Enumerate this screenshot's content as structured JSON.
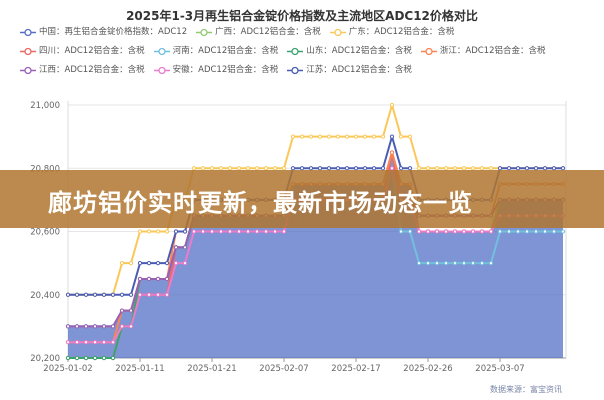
{
  "chart_data": {
    "type": "line",
    "title": "2025年1-3月再生铝合金锭价格指数及主流地区ADC12价格对比",
    "x_tick_labels": [
      "2025-01-02",
      "2025-01-11",
      "2025-01-21",
      "2025-02-07",
      "2025-02-17",
      "2025-02-26",
      "2025-03-07"
    ],
    "y_tick_labels": [
      "20,200",
      "20,400",
      "20,600",
      "20,800",
      "21,000"
    ],
    "ylim": [
      20200,
      21000
    ],
    "grid": true,
    "legend_position": "top",
    "source": "数据来源：富宝资讯",
    "series": [
      {
        "name": "中国：再生铝合金锭价格指数：ADC12",
        "color": "#5470c6",
        "area": true,
        "values": [
          20300,
          20300,
          20300,
          20300,
          20300,
          20300,
          20350,
          20350,
          20450,
          20450,
          20450,
          20450,
          20550,
          20550,
          20650,
          20650,
          20650,
          20650,
          20650,
          20650,
          20650,
          20650,
          20650,
          20650,
          20650,
          20750,
          20750,
          20750,
          20750,
          20750,
          20750,
          20750,
          20750,
          20750,
          20750,
          20750,
          20850,
          20750,
          20750,
          20600,
          20600,
          20600,
          20600,
          20600,
          20600,
          20600,
          20600,
          20600,
          20700,
          20700,
          20700,
          20700,
          20700,
          20700,
          20700,
          20700
        ]
      },
      {
        "name": "广西：ADC12铝合金：含税",
        "color": "#91cc75",
        "values": [
          20200,
          20200,
          20200,
          20200,
          20200,
          20200,
          20300,
          20300,
          20450,
          20450,
          20450,
          20450,
          20550,
          20550,
          20650,
          20650,
          20650,
          20650,
          20650,
          20650,
          20650,
          20650,
          20650,
          20650,
          20650,
          20750,
          20750,
          20750,
          20750,
          20750,
          20750,
          20750,
          20750,
          20750,
          20750,
          20750,
          20800,
          20700,
          20700,
          20600,
          20600,
          20600,
          20600,
          20600,
          20600,
          20600,
          20600,
          20600,
          20700,
          20700,
          20700,
          20700,
          20700,
          20700,
          20700,
          20700
        ]
      },
      {
        "name": "广东：ADC12铝合金：含税",
        "color": "#fac858",
        "values": [
          20400,
          20400,
          20400,
          20400,
          20400,
          20400,
          20500,
          20500,
          20600,
          20600,
          20600,
          20600,
          20700,
          20700,
          20800,
          20800,
          20800,
          20800,
          20800,
          20800,
          20800,
          20800,
          20800,
          20800,
          20800,
          20900,
          20900,
          20900,
          20900,
          20900,
          20900,
          20900,
          20900,
          20900,
          20900,
          20900,
          21000,
          20900,
          20900,
          20800,
          20800,
          20800,
          20800,
          20800,
          20800,
          20800,
          20800,
          20800,
          20800,
          20800,
          20800,
          20800,
          20800,
          20800,
          20800,
          20800
        ]
      },
      {
        "name": "四川：ADC12铝合金：含税",
        "color": "#ee6666",
        "values": [
          20200,
          20200,
          20200,
          20200,
          20200,
          20200,
          20300,
          20300,
          20400,
          20400,
          20400,
          20400,
          20550,
          20550,
          20650,
          20650,
          20650,
          20650,
          20650,
          20650,
          20650,
          20650,
          20650,
          20650,
          20650,
          20700,
          20700,
          20700,
          20700,
          20700,
          20700,
          20700,
          20700,
          20700,
          20700,
          20700,
          20850,
          20700,
          20700,
          20600,
          20600,
          20600,
          20600,
          20600,
          20600,
          20600,
          20600,
          20600,
          20650,
          20650,
          20650,
          20650,
          20650,
          20650,
          20650,
          20650
        ]
      },
      {
        "name": "河南：ADC12铝合金：含税",
        "color": "#73c0de",
        "values": [
          20300,
          20300,
          20300,
          20300,
          20300,
          20300,
          20350,
          20350,
          20450,
          20450,
          20450,
          20450,
          20550,
          20550,
          20650,
          20650,
          20650,
          20650,
          20650,
          20650,
          20650,
          20650,
          20650,
          20650,
          20650,
          20750,
          20750,
          20750,
          20750,
          20750,
          20750,
          20750,
          20750,
          20750,
          20750,
          20750,
          20800,
          20600,
          20600,
          20500,
          20500,
          20500,
          20500,
          20500,
          20500,
          20500,
          20500,
          20500,
          20600,
          20600,
          20600,
          20600,
          20600,
          20600,
          20600,
          20600
        ]
      },
      {
        "name": "山东：ADC12铝合金：含税",
        "color": "#3ba272",
        "values": [
          20200,
          20200,
          20200,
          20200,
          20200,
          20200,
          20300,
          20300,
          20450,
          20450,
          20450,
          20450,
          20550,
          20550,
          20650,
          20650,
          20650,
          20650,
          20650,
          20650,
          20650,
          20650,
          20650,
          20650,
          20650,
          20700,
          20700,
          20700,
          20700,
          20700,
          20700,
          20700,
          20700,
          20700,
          20700,
          20700,
          20800,
          20700,
          20700,
          20650,
          20650,
          20650,
          20650,
          20650,
          20650,
          20650,
          20650,
          20650,
          20700,
          20700,
          20700,
          20700,
          20700,
          20700,
          20700,
          20700
        ]
      },
      {
        "name": "浙江：ADC12铝合金：含税",
        "color": "#fc8452",
        "values": [
          20250,
          20250,
          20250,
          20250,
          20250,
          20250,
          20350,
          20350,
          20450,
          20450,
          20450,
          20450,
          20600,
          20600,
          20700,
          20700,
          20700,
          20700,
          20700,
          20700,
          20700,
          20700,
          20700,
          20700,
          20700,
          20750,
          20750,
          20750,
          20750,
          20750,
          20750,
          20750,
          20750,
          20750,
          20750,
          20750,
          20850,
          20750,
          20750,
          20650,
          20650,
          20650,
          20650,
          20650,
          20650,
          20650,
          20650,
          20650,
          20750,
          20750,
          20750,
          20750,
          20750,
          20750,
          20750,
          20750
        ]
      },
      {
        "name": "江西：ADC12铝合金：含税",
        "color": "#9a60b4",
        "values": [
          20300,
          20300,
          20300,
          20300,
          20300,
          20300,
          20350,
          20350,
          20450,
          20450,
          20450,
          20450,
          20550,
          20550,
          20650,
          20650,
          20650,
          20650,
          20650,
          20650,
          20650,
          20650,
          20650,
          20650,
          20650,
          20700,
          20700,
          20700,
          20700,
          20700,
          20700,
          20700,
          20700,
          20700,
          20700,
          20700,
          20800,
          20700,
          20700,
          20650,
          20650,
          20650,
          20650,
          20650,
          20650,
          20650,
          20650,
          20650,
          20700,
          20700,
          20700,
          20700,
          20700,
          20700,
          20700,
          20700
        ]
      },
      {
        "name": "安徽：ADC12铝合金：含税",
        "color": "#ea7ccc",
        "values": [
          20250,
          20250,
          20250,
          20250,
          20250,
          20250,
          20300,
          20300,
          20400,
          20400,
          20400,
          20400,
          20500,
          20500,
          20600,
          20600,
          20600,
          20600,
          20600,
          20600,
          20600,
          20600,
          20600,
          20600,
          20600,
          20700,
          20700,
          20700,
          20700,
          20700,
          20700,
          20700,
          20700,
          20700,
          20700,
          20700,
          20800,
          20700,
          20700,
          20600,
          20600,
          20600,
          20600,
          20600,
          20600,
          20600,
          20600,
          20600,
          20650,
          20650,
          20650,
          20650,
          20650,
          20650,
          20650,
          20650
        ]
      },
      {
        "name": "江苏：ADC12铝合金：含税",
        "color": "#4b5cb4",
        "values": [
          20400,
          20400,
          20400,
          20400,
          20400,
          20400,
          20400,
          20400,
          20500,
          20500,
          20500,
          20500,
          20600,
          20600,
          20700,
          20700,
          20700,
          20700,
          20700,
          20700,
          20700,
          20700,
          20700,
          20700,
          20700,
          20800,
          20800,
          20800,
          20800,
          20800,
          20800,
          20800,
          20800,
          20800,
          20800,
          20800,
          20900,
          20800,
          20800,
          20700,
          20700,
          20700,
          20700,
          20700,
          20700,
          20700,
          20700,
          20700,
          20800,
          20800,
          20800,
          20800,
          20800,
          20800,
          20800,
          20800
        ]
      }
    ]
  },
  "banner": {
    "text": "廊坊铝价实时更新，最新市场动态一览"
  }
}
